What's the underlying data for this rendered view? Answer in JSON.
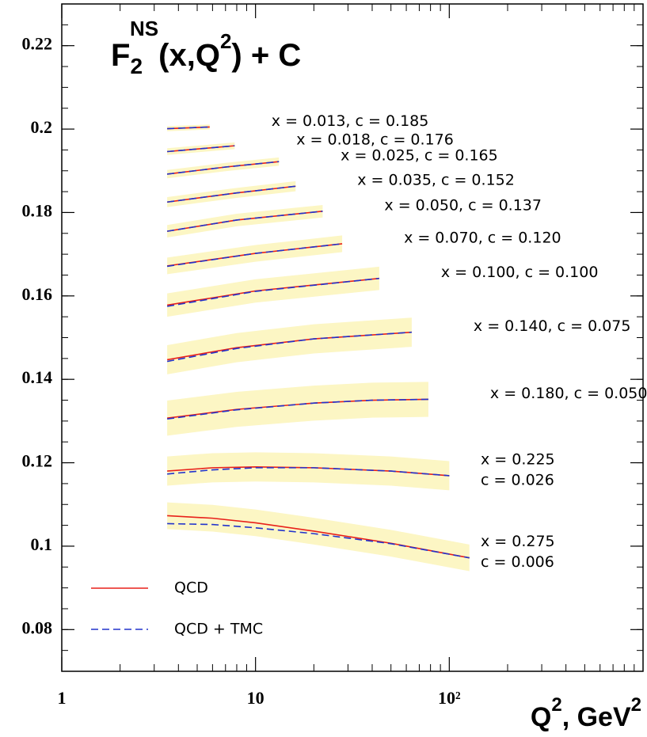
{
  "chart_data": {
    "type": "line",
    "title_parts": [
      "F",
      "2",
      "NS",
      "(x,Q",
      "2",
      ") + C"
    ],
    "xlabel_parts": [
      "Q",
      "2",
      ", GeV",
      "2"
    ],
    "xscale": "log",
    "xlim": [
      1,
      1000
    ],
    "xticks": [
      1,
      10,
      {
        "value": 100,
        "label": "10²"
      }
    ],
    "ylim": [
      0.07,
      0.23
    ],
    "yticks": [
      0.08,
      0.1,
      0.12,
      0.14,
      0.16,
      0.18,
      0.2,
      0.22
    ],
    "band_color": "#fcf6c4",
    "legend": "lower left",
    "series": [
      {
        "name": "QCD",
        "color": "#e8201a",
        "dash": false
      },
      {
        "name": "QCD + TMC",
        "color": "#2233cc",
        "dash": true
      }
    ],
    "curves": [
      {
        "label": [
          "x = 0.013, c = 0.185"
        ],
        "q2": [
          3.5,
          5.8
        ],
        "qcd": [
          0.2001,
          0.2005
        ],
        "tmc": [
          0.2001,
          0.2005
        ],
        "err": 0.0006
      },
      {
        "label": [
          "x = 0.018, c = 0.176"
        ],
        "q2": [
          3.5,
          7.8
        ],
        "qcd": [
          0.1946,
          0.196
        ],
        "tmc": [
          0.1946,
          0.196
        ],
        "err": 0.0008
      },
      {
        "label": [
          "x = 0.025, c = 0.165"
        ],
        "q2": [
          3.5,
          7,
          13.2
        ],
        "qcd": [
          0.1892,
          0.1909,
          0.1922
        ],
        "tmc": [
          0.1892,
          0.1909,
          0.1922
        ],
        "err": 0.001
      },
      {
        "label": [
          "x = 0.035, c = 0.152"
        ],
        "q2": [
          3.5,
          8,
          16.1
        ],
        "qcd": [
          0.1825,
          0.1847,
          0.1863
        ],
        "tmc": [
          0.1825,
          0.1847,
          0.1863
        ],
        "err": 0.0012
      },
      {
        "label": [
          "x = 0.050, c = 0.137"
        ],
        "q2": [
          3.5,
          8,
          22.2
        ],
        "qcd": [
          0.1755,
          0.1782,
          0.1803
        ],
        "tmc": [
          0.1755,
          0.1782,
          0.1803
        ],
        "err": 0.0015
      },
      {
        "label": [
          "x = 0.070, c = 0.120"
        ],
        "q2": [
          3.5,
          10,
          28
        ],
        "qcd": [
          0.1672,
          0.1702,
          0.1725
        ],
        "tmc": [
          0.1671,
          0.1702,
          0.1725
        ],
        "err": 0.002
      },
      {
        "label": [
          "x = 0.100, c = 0.100"
        ],
        "q2": [
          3.5,
          10,
          43.5
        ],
        "qcd": [
          0.1578,
          0.1612,
          0.1642
        ],
        "tmc": [
          0.1575,
          0.1611,
          0.1642
        ],
        "err": 0.0028
      },
      {
        "label": [
          "x = 0.140, c = 0.075"
        ],
        "q2": [
          3.5,
          8,
          20,
          64
        ],
        "qcd": [
          0.1447,
          0.1476,
          0.1497,
          0.1513
        ],
        "tmc": [
          0.1443,
          0.1474,
          0.1497,
          0.1513
        ],
        "err": 0.0035
      },
      {
        "label": [
          "x = 0.180, c = 0.050"
        ],
        "q2": [
          3.5,
          8,
          20,
          40,
          78
        ],
        "qcd": [
          0.1307,
          0.1328,
          0.1343,
          0.135,
          0.1352
        ],
        "tmc": [
          0.1305,
          0.1327,
          0.1343,
          0.135,
          0.1352
        ],
        "err": 0.0042
      },
      {
        "label": [
          "x = 0.225",
          "c = 0.026"
        ],
        "q2": [
          3.5,
          6,
          10,
          20,
          50,
          100
        ],
        "qcd": [
          0.118,
          0.1188,
          0.119,
          0.1188,
          0.118,
          0.1169
        ],
        "tmc": [
          0.1173,
          0.1183,
          0.1188,
          0.1188,
          0.118,
          0.1169
        ],
        "err": 0.0035
      },
      {
        "label": [
          "x = 0.275",
          "c = 0.006"
        ],
        "q2": [
          3.5,
          6,
          10,
          20,
          50,
          127
        ],
        "qcd": [
          0.1073,
          0.1067,
          0.1056,
          0.1036,
          0.1007,
          0.0972
        ],
        "tmc": [
          0.1054,
          0.1052,
          0.1044,
          0.103,
          0.1006,
          0.0972
        ],
        "err": 0.0032
      }
    ]
  }
}
